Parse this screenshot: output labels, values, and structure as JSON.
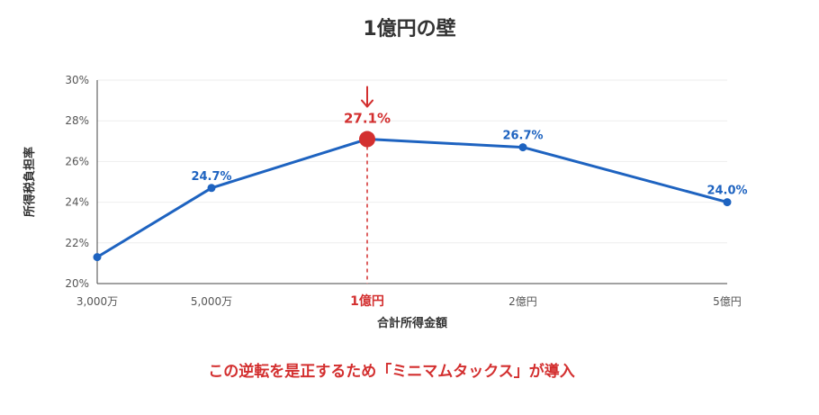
{
  "title": "1億円の壁",
  "footer_note": "この逆転を是正するため「ミニマムタックス」が導入",
  "colors": {
    "line": "#1e63c0",
    "highlight": "#d32f2f",
    "axis": "#444444",
    "grid": "#eeeeee",
    "title": "#333333"
  },
  "chart_data": {
    "type": "line",
    "title": "1億円の壁",
    "xlabel": "合計所得金額",
    "ylabel": "所得税負担率",
    "categories": [
      "3,000万",
      "5,000万",
      "1億円",
      "2億円",
      "5億円"
    ],
    "values": [
      21.3,
      24.7,
      27.1,
      26.7,
      24.0
    ],
    "data_labels": [
      "",
      "24.7%",
      "27.1%",
      "26.7%",
      "24.0%"
    ],
    "y_ticks": [
      "20%",
      "22%",
      "24%",
      "26%",
      "28%",
      "30%"
    ],
    "y_tick_values": [
      20,
      22,
      24,
      26,
      28,
      30
    ],
    "ylim": [
      20,
      30
    ],
    "grid": true,
    "highlight_index": 2,
    "highlight_marker": "down-arrow"
  }
}
